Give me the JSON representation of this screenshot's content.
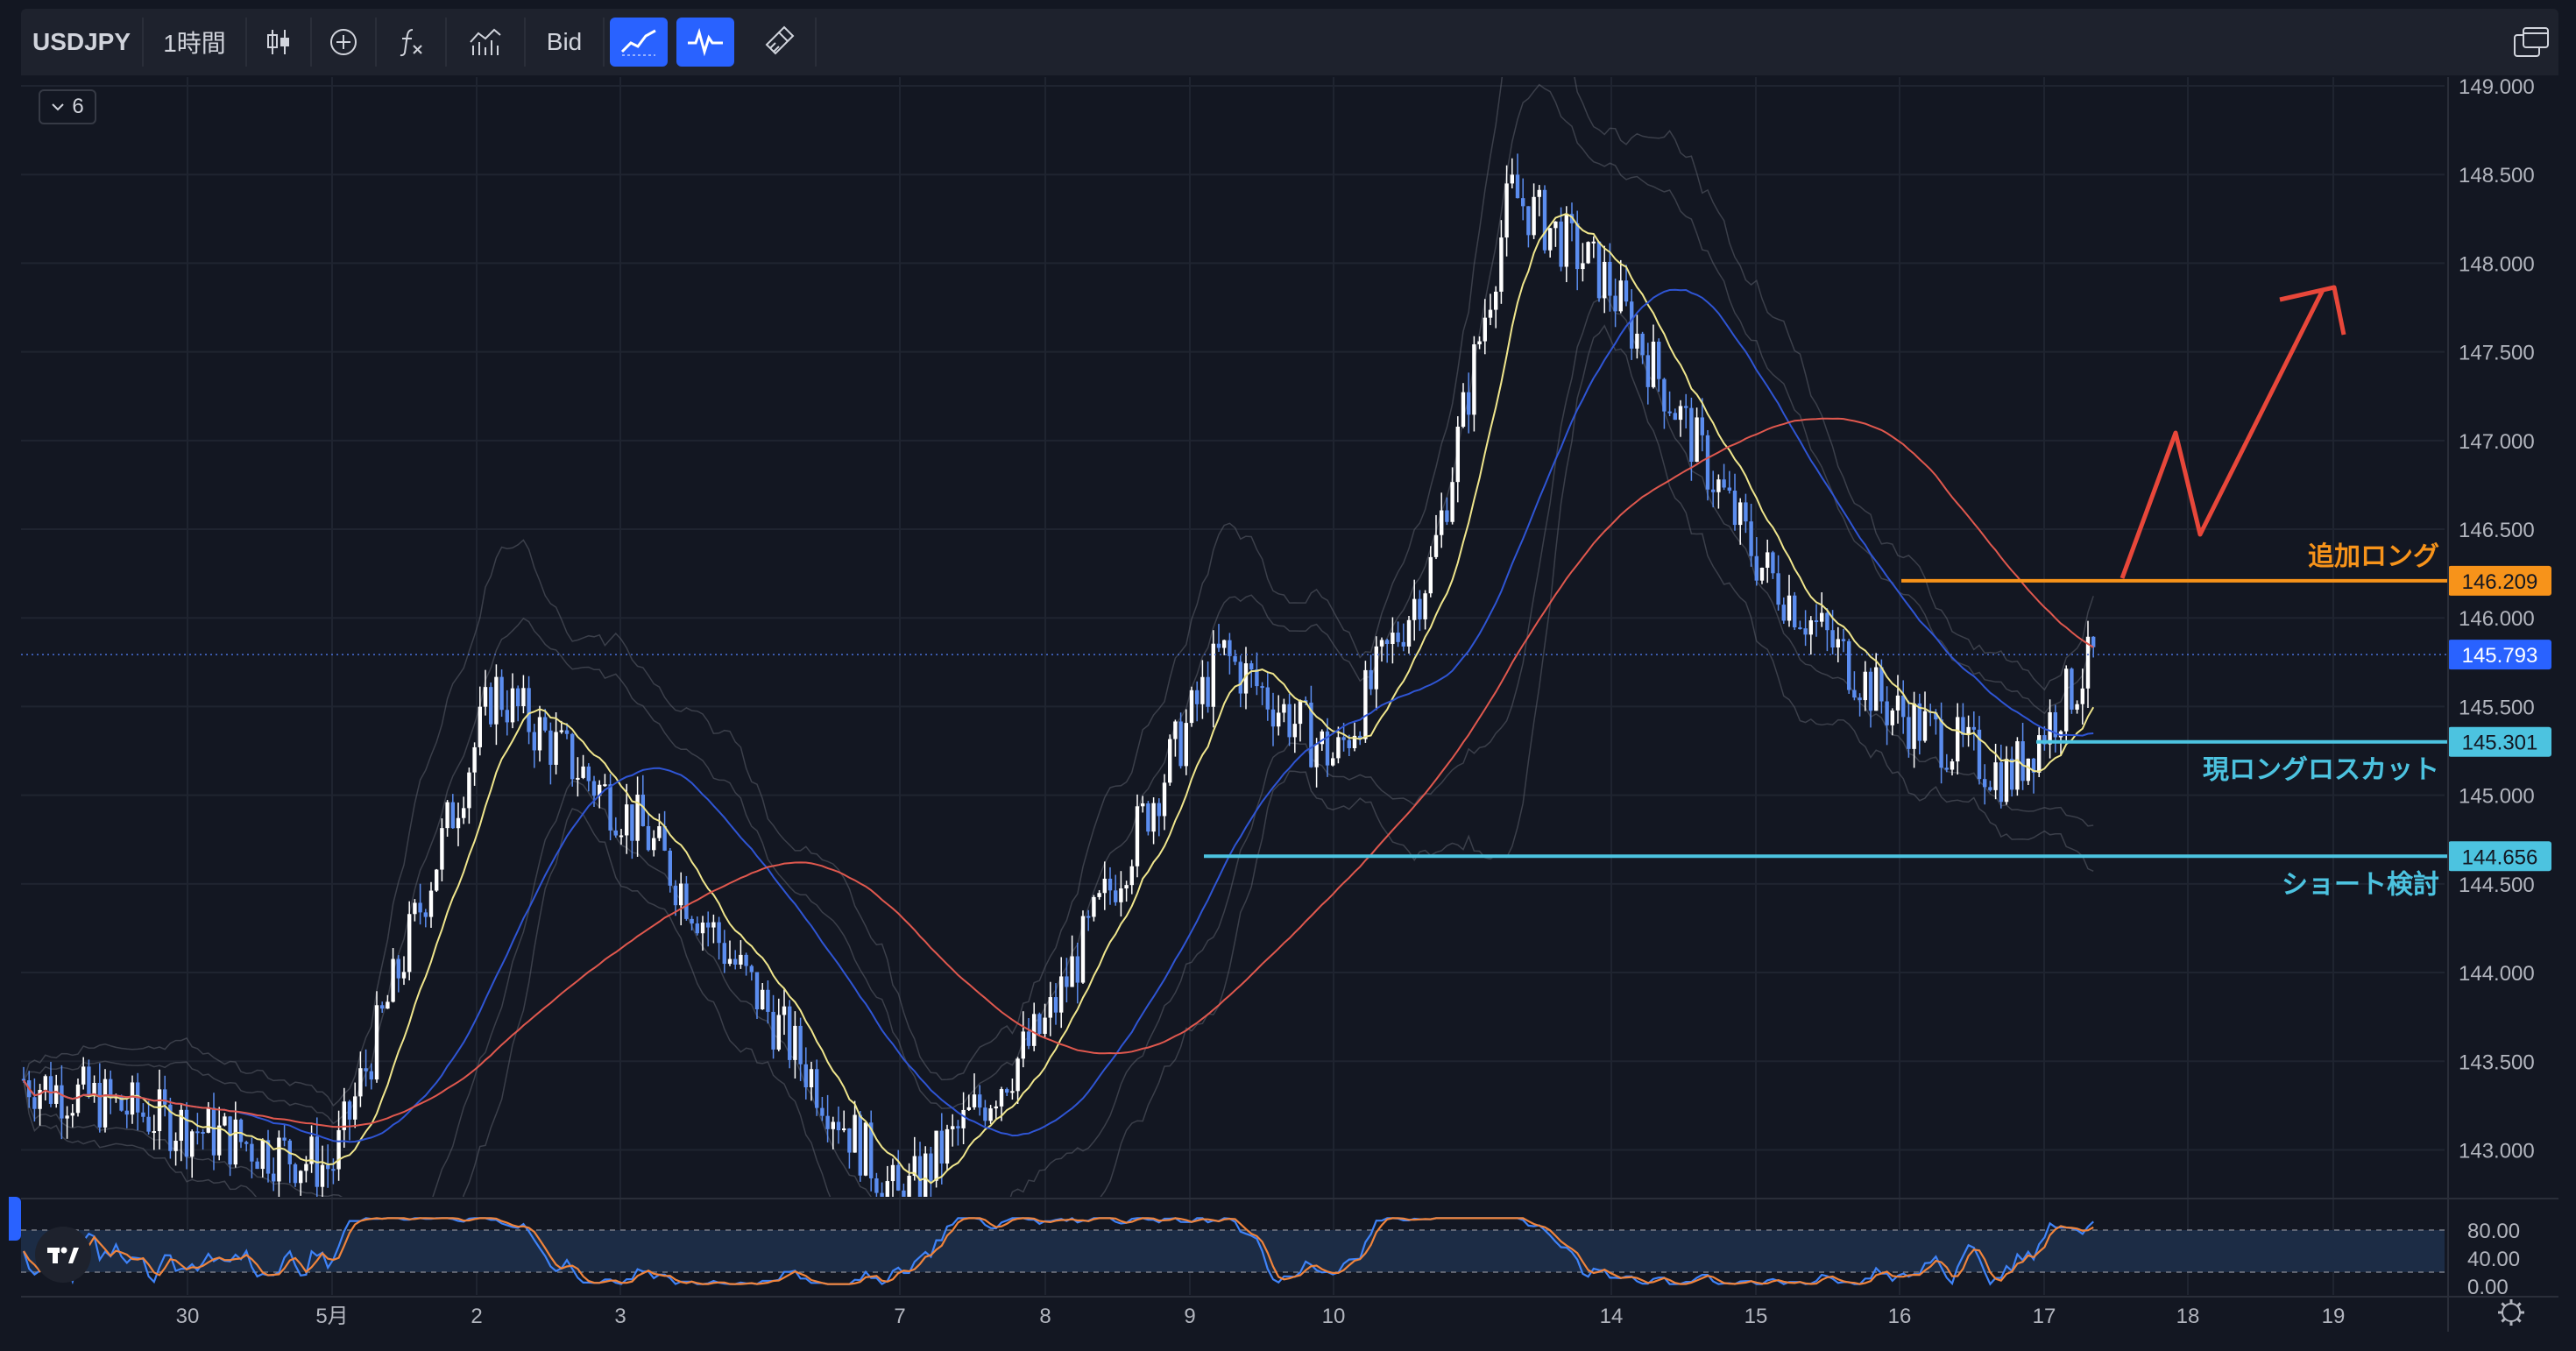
{
  "toolbar": {
    "symbol": "USDJPY",
    "interval": "1時間",
    "price_type": "Bid",
    "items": [
      {
        "name": "chart-type-candles-button",
        "icon": "candles-icon"
      },
      {
        "name": "add-compare-button",
        "icon": "plus-circle-icon"
      },
      {
        "name": "indicators-button",
        "icon": "fx-icon"
      },
      {
        "name": "templates-button",
        "icon": "bars-chart-icon"
      },
      {
        "name": "trend-line-tool-button",
        "icon": "trend-line-icon"
      },
      {
        "name": "oscillator-tool-button",
        "icon": "pulse-icon"
      },
      {
        "name": "brush-tool-button",
        "icon": "brush-icon"
      }
    ],
    "right_icon": "layout-windows-icon"
  },
  "legend": {
    "count": "6"
  },
  "colors": {
    "background": "#131722",
    "grid": "#1f2430",
    "up_candle": "#ffffff",
    "down_candle": "#5b8def",
    "ma_fast": "#f0e68c",
    "ma_mid": "#2f55d4",
    "ma_slow": "#e0584e",
    "bollinger": "#5d606b",
    "add_long": "#f7931a",
    "stop_line": "#4cc3e0",
    "arrow": "#e8473a",
    "stoch_k": "#3f83f8",
    "stoch_d": "#f0843c",
    "stoch_band": "#1c2c45"
  },
  "chart_data": {
    "type": "candlestick",
    "symbol": "USDJPY",
    "interval": "1時間",
    "y_axis_labels": [
      "149.000",
      "148.500",
      "148.000",
      "147.500",
      "147.000",
      "146.500",
      "146.000",
      "145.500",
      "145.000",
      "144.500",
      "144.000",
      "143.500",
      "143.000"
    ],
    "ylim": [
      142.7,
      149.0
    ],
    "x_axis_labels": [
      "30",
      "5月",
      "2",
      "3",
      "7",
      "8",
      "9",
      "10",
      "14",
      "15",
      "16",
      "17",
      "18",
      "19"
    ],
    "current_price": {
      "value": 145.793,
      "label": "145.793"
    },
    "levels": [
      {
        "name": "add-long",
        "value": 146.209,
        "label": "146.209",
        "text": "追加ロング"
      },
      {
        "name": "current-long-stop",
        "value": 145.301,
        "label": "145.301",
        "text": "現ロングロスカット"
      },
      {
        "name": "short-consider",
        "value": 144.656,
        "label": "144.656",
        "text": "ショート検討"
      }
    ],
    "close_path": [
      {
        "x": "30",
        "y": 143.4
      },
      {
        "x": "5月",
        "y": 142.9
      },
      {
        "x": "2",
        "y": 145.6
      },
      {
        "x": "3",
        "y": 144.8
      },
      {
        "x": "7",
        "y": 142.7
      },
      {
        "x": "8",
        "y": 143.7
      },
      {
        "x": "9",
        "y": 145.8
      },
      {
        "x": "10",
        "y": 145.2
      },
      {
        "x": "10",
        "y": 146.3
      },
      {
        "x": "10",
        "y": 148.4
      },
      {
        "x": "14",
        "y": 147.9
      },
      {
        "x": "15",
        "y": 146.3
      },
      {
        "x": "16",
        "y": 145.5
      },
      {
        "x": "16",
        "y": 145.1
      },
      {
        "x": "17",
        "y": 145.8
      }
    ],
    "moving_averages": [
      {
        "name": "fast",
        "color": "#f0e68c"
      },
      {
        "name": "mid",
        "color": "#2f55d4"
      },
      {
        "name": "slow",
        "color": "#e0584e"
      }
    ],
    "oscillator": {
      "type": "stochastic",
      "y_axis_labels": [
        "80.00",
        "40.00",
        "0.00"
      ],
      "ylim": [
        0,
        100
      ],
      "upper_band": 80,
      "lower_band": 20
    }
  }
}
